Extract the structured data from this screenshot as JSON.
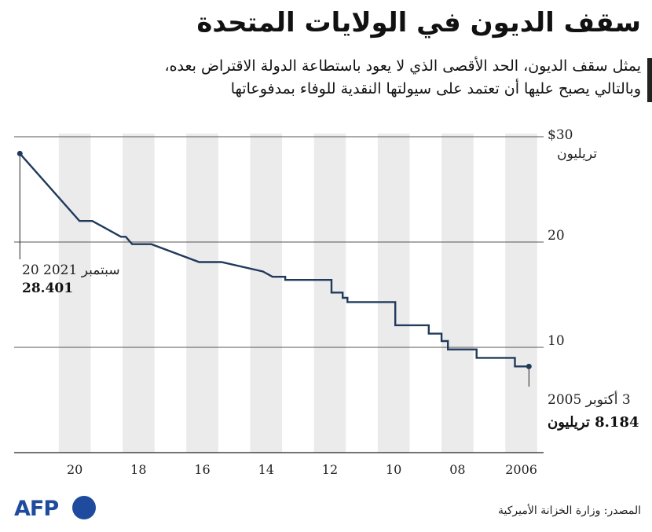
{
  "title": "سقف الديون في الولايات المتحدة",
  "subtitle_line1": "يمثل سقف الديون، الحد الأقصى الذي لا يعود باستطاعة الدولة الاقتراض بعده،",
  "subtitle_line2": "وبالتالي يصبح عليها أن تعتمد على سيولتها النقدية للوفاء بمدفوعاتها",
  "source": "المصدر: وزارة الخزانة الأميركية",
  "logo_text": "AFP",
  "colors": {
    "line": "#203a5c",
    "band": "#ebebeb",
    "grid": "#555555",
    "logo": "#1f4b9e"
  },
  "chart_data": {
    "type": "line",
    "title": "سقف الديون في الولايات المتحدة",
    "ylabel_top": "$30",
    "yunit": "تريليون",
    "ylim": [
      0,
      30
    ],
    "yticks": [
      10,
      20
    ],
    "xlim": [
      2021.9,
      2005.3
    ],
    "xtick_labels": [
      {
        "x": 2020,
        "label": "20"
      },
      {
        "x": 2018,
        "label": "18"
      },
      {
        "x": 2016,
        "label": "16"
      },
      {
        "x": 2014,
        "label": "14"
      },
      {
        "x": 2012,
        "label": "12"
      },
      {
        "x": 2010,
        "label": "10"
      },
      {
        "x": 2008,
        "label": "08"
      },
      {
        "x": 2006,
        "label": "2006"
      }
    ],
    "series": [
      {
        "name": "سقف الديون",
        "points": [
          [
            2021.72,
            28.401
          ],
          [
            2019.85,
            22.0
          ],
          [
            2019.45,
            22.0
          ],
          [
            2018.55,
            20.5
          ],
          [
            2018.4,
            20.5
          ],
          [
            2018.2,
            19.8
          ],
          [
            2017.6,
            19.8
          ],
          [
            2016.1,
            18.1
          ],
          [
            2015.4,
            18.1
          ],
          [
            2014.1,
            17.2
          ],
          [
            2013.8,
            16.7
          ],
          [
            2013.4,
            16.7
          ],
          [
            2013.4,
            16.4
          ],
          [
            2011.95,
            16.4
          ],
          [
            2011.95,
            15.2
          ],
          [
            2011.6,
            15.2
          ],
          [
            2011.6,
            14.7
          ],
          [
            2011.45,
            14.7
          ],
          [
            2011.45,
            14.3
          ],
          [
            2009.95,
            14.3
          ],
          [
            2009.95,
            12.1
          ],
          [
            2009.85,
            12.1
          ],
          [
            2009.85,
            12.1
          ],
          [
            2008.9,
            12.1
          ],
          [
            2008.9,
            11.3
          ],
          [
            2008.5,
            11.3
          ],
          [
            2008.5,
            10.6
          ],
          [
            2008.3,
            10.6
          ],
          [
            2008.3,
            9.8
          ],
          [
            2007.4,
            9.8
          ],
          [
            2007.4,
            9.0
          ],
          [
            2006.2,
            9.0
          ],
          [
            2006.2,
            8.184
          ],
          [
            2005.76,
            8.184
          ]
        ]
      }
    ],
    "annotations": [
      {
        "date": "20 سبتمبر 2021",
        "value": "28.401",
        "x": 2021.72,
        "y": 28.401
      },
      {
        "date": "3 أكتوبر 2005",
        "value": "8.184 تريليون",
        "x": 2005.76,
        "y": 8.184
      }
    ]
  }
}
